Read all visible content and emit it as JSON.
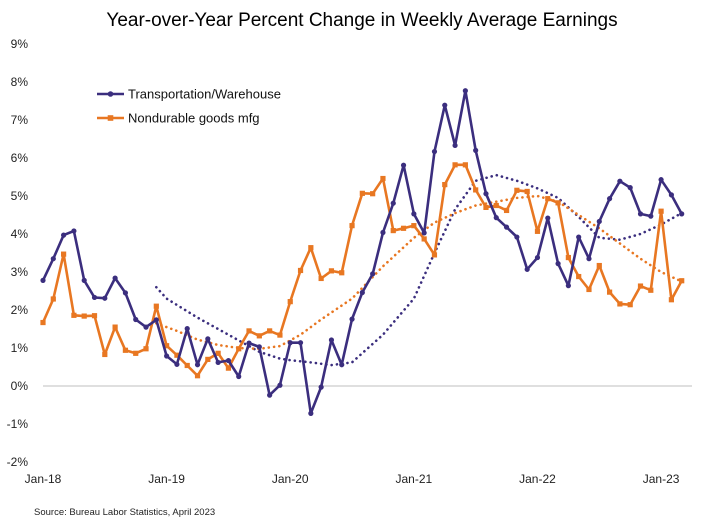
{
  "chart_data": {
    "type": "line",
    "title": "Year-over-Year Percent Change in Weekly Average Earnings",
    "source": "Source: Bureau Labor Statistics, April 2023",
    "ylim": [
      -2,
      9
    ],
    "yticks": [
      -2,
      -1,
      0,
      1,
      2,
      3,
      4,
      5,
      6,
      7,
      8,
      9
    ],
    "ytick_labels": [
      "-2%",
      "-1%",
      "0%",
      "1%",
      "2%",
      "3%",
      "4%",
      "5%",
      "6%",
      "7%",
      "8%",
      "9%"
    ],
    "x_labels": [
      "Jan-18",
      "Jan-19",
      "Jan-20",
      "Jan-21",
      "Jan-22",
      "Jan-23"
    ],
    "x_label_index": [
      0,
      12,
      24,
      36,
      48,
      60
    ],
    "xlim": [
      0,
      63
    ],
    "legend_placement": "top-left",
    "series": [
      {
        "name": "Transportation/Warehouse",
        "color": "#3b2e7e",
        "marker": "circle",
        "values": [
          2.78,
          3.35,
          3.97,
          4.08,
          2.78,
          2.33,
          2.31,
          2.84,
          2.45,
          1.75,
          1.55,
          1.74,
          0.79,
          0.57,
          1.51,
          0.56,
          1.24,
          0.62,
          0.67,
          0.25,
          1.13,
          1.03,
          -0.24,
          0.02,
          1.14,
          1.14,
          -0.72,
          -0.03,
          1.21,
          0.56,
          1.76,
          2.46,
          2.95,
          4.04,
          4.81,
          5.81,
          4.53,
          4.03,
          6.17,
          7.39,
          6.33,
          7.77,
          6.2,
          5.06,
          4.43,
          4.18,
          3.92,
          3.07,
          3.38,
          4.42,
          3.22,
          2.64,
          3.92,
          3.35,
          4.33,
          4.93,
          5.39,
          5.22,
          4.53,
          4.47,
          5.43,
          5.03,
          4.53
        ]
      },
      {
        "name": "Nondurable goods mfg",
        "color": "#e87722",
        "marker": "square",
        "values": [
          1.67,
          2.29,
          3.47,
          1.86,
          1.84,
          1.85,
          0.83,
          1.55,
          0.94,
          0.86,
          0.98,
          2.1,
          1.06,
          0.81,
          0.54,
          0.27,
          0.7,
          0.86,
          0.47,
          0.98,
          1.45,
          1.32,
          1.45,
          1.34,
          2.22,
          3.04,
          3.64,
          2.83,
          3.03,
          2.98,
          4.22,
          5.07,
          5.06,
          5.46,
          4.09,
          4.15,
          4.22,
          3.87,
          3.45,
          5.3,
          5.82,
          5.82,
          5.16,
          4.7,
          4.75,
          4.62,
          5.15,
          5.12,
          4.07,
          4.93,
          4.82,
          3.38,
          2.88,
          2.54,
          3.17,
          2.47,
          2.16,
          2.14,
          2.63,
          2.52,
          4.6,
          2.27,
          2.77
        ]
      }
    ],
    "trendlines": [
      {
        "color": "#3b2e7e",
        "style": "dotted",
        "x": [
          11,
          12,
          15,
          18,
          21,
          23,
          24,
          26,
          28,
          30,
          33,
          36,
          38,
          40,
          42,
          44,
          46,
          48,
          50,
          52,
          54,
          56,
          58,
          60,
          62
        ],
        "values": [
          2.6,
          2.3,
          1.8,
          1.35,
          0.9,
          0.72,
          0.68,
          0.62,
          0.55,
          0.62,
          1.35,
          2.3,
          3.5,
          4.65,
          5.4,
          5.55,
          5.4,
          5.2,
          4.95,
          4.45,
          3.9,
          3.85,
          4.0,
          4.25,
          4.55
        ]
      },
      {
        "color": "#e87722",
        "style": "dotted",
        "x": [
          11,
          13,
          15,
          17,
          19,
          21,
          23,
          25,
          27,
          30,
          33,
          36,
          38,
          40,
          42,
          44,
          46,
          48,
          50,
          52,
          54,
          56,
          58,
          60,
          62
        ],
        "values": [
          1.65,
          1.45,
          1.22,
          1.08,
          1.0,
          0.98,
          1.05,
          1.35,
          1.75,
          2.3,
          3.15,
          3.9,
          4.3,
          4.55,
          4.75,
          4.85,
          4.95,
          5.0,
          4.85,
          4.5,
          4.15,
          3.75,
          3.35,
          3.0,
          2.75
        ]
      }
    ]
  }
}
